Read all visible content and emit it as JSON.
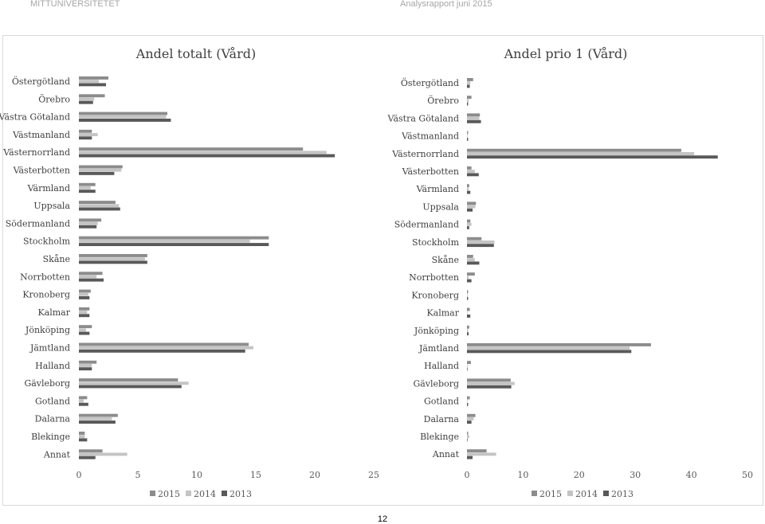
{
  "header": {
    "left": "MITTUNIVERSITETET",
    "right": "Analysrapport juni 2015"
  },
  "page_number": "12",
  "chart_data": [
    {
      "type": "bar",
      "orientation": "horizontal",
      "title": "Andel totalt (Vård)",
      "categories": [
        "Östergötland",
        "Örebro",
        "Västra Götaland",
        "Västmanland",
        "Västernorrland",
        "Västerbotten",
        "Värmland",
        "Uppsala",
        "Södermanland",
        "Stockholm",
        "Skåne",
        "Norrbotten",
        "Kronoberg",
        "Kalmar",
        "Jönköping",
        "Jämtland",
        "Halland",
        "Gävleborg",
        "Gotland",
        "Dalarna",
        "Blekinge",
        "Annat"
      ],
      "series": [
        {
          "name": "2015",
          "color": "#8c8c8c",
          "values": [
            2.5,
            2.2,
            7.5,
            1.1,
            19.0,
            3.7,
            1.4,
            3.1,
            1.9,
            16.1,
            5.8,
            2.0,
            1.0,
            0.9,
            1.1,
            14.4,
            1.5,
            8.4,
            0.7,
            3.3,
            0.5,
            2.0
          ]
        },
        {
          "name": "2014",
          "color": "#c4c4c4",
          "values": [
            1.7,
            1.3,
            7.4,
            1.6,
            21.0,
            3.6,
            1.0,
            3.4,
            1.6,
            14.5,
            5.6,
            1.5,
            0.8,
            0.7,
            0.6,
            14.8,
            1.1,
            9.3,
            0.4,
            2.8,
            0.5,
            4.1
          ]
        },
        {
          "name": "2013",
          "color": "#595959",
          "values": [
            2.3,
            1.2,
            7.8,
            1.1,
            21.7,
            3.0,
            1.4,
            3.5,
            1.5,
            16.1,
            5.8,
            2.1,
            0.9,
            0.9,
            0.9,
            14.1,
            1.1,
            8.7,
            0.8,
            3.1,
            0.7,
            1.4
          ]
        }
      ],
      "xlim": [
        0,
        25
      ],
      "xticks": [
        "0",
        "5",
        "10",
        "15",
        "20",
        "25"
      ],
      "legend": "bottom"
    },
    {
      "type": "bar",
      "orientation": "horizontal",
      "title": "Andel prio 1 (Vård)",
      "categories": [
        "Östergötland",
        "Örebro",
        "Västra Götaland",
        "Västmanland",
        "Västernorrland",
        "Västerbotten",
        "Värmland",
        "Uppsala",
        "Södermanland",
        "Stockholm",
        "Skåne",
        "Norrbotten",
        "Kronoberg",
        "Kalmar",
        "Jönköping",
        "Jämtland",
        "Halland",
        "Gävleborg",
        "Gotland",
        "Dalarna",
        "Blekinge",
        "Annat"
      ],
      "series": [
        {
          "name": "2015",
          "color": "#8c8c8c",
          "values": [
            1.1,
            0.8,
            2.3,
            0.2,
            38.2,
            0.8,
            0.4,
            1.6,
            0.6,
            2.6,
            1.1,
            1.4,
            0.2,
            0.5,
            0.4,
            32.8,
            0.7,
            7.8,
            0.5,
            1.5,
            0.2,
            3.5
          ]
        },
        {
          "name": "2014",
          "color": "#c4c4c4",
          "values": [
            0.6,
            0.3,
            2.2,
            0.1,
            40.5,
            1.4,
            0.3,
            1.5,
            0.8,
            4.9,
            1.4,
            0.3,
            0.1,
            0.1,
            0.2,
            29.0,
            0.1,
            8.5,
            0.1,
            1.2,
            0.4,
            5.2
          ]
        },
        {
          "name": "2013",
          "color": "#595959",
          "values": [
            0.5,
            0.2,
            2.5,
            0.2,
            44.7,
            2.1,
            0.6,
            1.0,
            0.4,
            4.8,
            2.2,
            0.8,
            0.2,
            0.6,
            0.3,
            29.3,
            0.1,
            7.9,
            0.2,
            0.8,
            0.1,
            1.0
          ]
        }
      ],
      "xlim": [
        0,
        50
      ],
      "xticks": [
        "0",
        "10",
        "20",
        "30",
        "40",
        "50"
      ],
      "legend": "bottom"
    }
  ]
}
